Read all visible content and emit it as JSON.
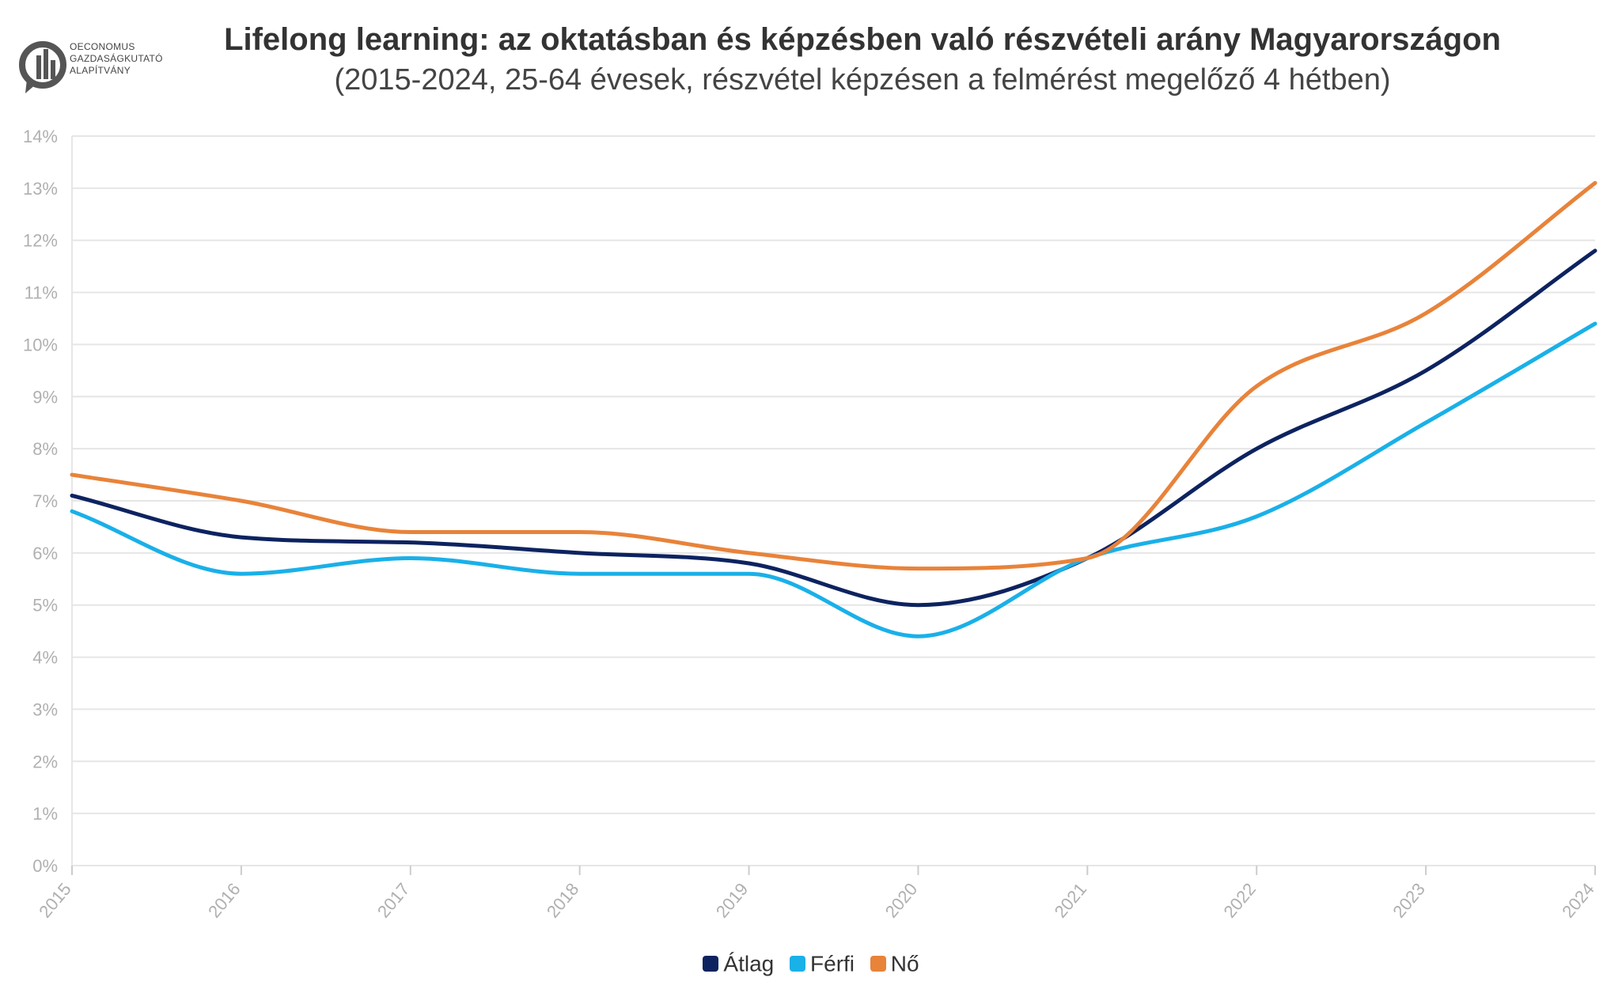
{
  "logo": {
    "lines": [
      "OECONOMUS",
      "GAZDASÁGKUTATÓ",
      "ALAPÍTVÁNY"
    ]
  },
  "chart_data": {
    "type": "line",
    "title": "Lifelong learning: az oktatásban és képzésben való részvételi arány Magyarországon",
    "subtitle": "(2015-2024, 25-64 évesek, részvétel képzésen a felmérést megelőző 4 hétben)",
    "x": [
      "2015",
      "2016",
      "2017",
      "2018",
      "2019",
      "2020",
      "2021",
      "2022",
      "2023",
      "2024"
    ],
    "y_ticks": [
      "0%",
      "1%",
      "2%",
      "3%",
      "4%",
      "5%",
      "6%",
      "7%",
      "8%",
      "9%",
      "10%",
      "11%",
      "12%",
      "13%",
      "14%"
    ],
    "ylim": [
      0,
      14
    ],
    "grid": true,
    "legend_position": "bottom",
    "series": [
      {
        "name": "Átlag",
        "color": "#0d2360",
        "values": [
          7.1,
          6.3,
          6.2,
          6.0,
          5.8,
          5.0,
          5.9,
          8.0,
          9.5,
          11.8
        ]
      },
      {
        "name": "Férfi",
        "color": "#1ab0e8",
        "values": [
          6.8,
          5.6,
          5.9,
          5.6,
          5.6,
          4.4,
          5.9,
          6.7,
          8.5,
          10.4
        ]
      },
      {
        "name": "Nő",
        "color": "#e8833a",
        "values": [
          7.5,
          7.0,
          6.4,
          6.4,
          6.0,
          5.7,
          5.9,
          9.2,
          10.6,
          13.1
        ]
      }
    ]
  },
  "colors": {
    "grid": "#e6e6e6",
    "axis_text": "#b0b0b0",
    "title": "#333333"
  }
}
